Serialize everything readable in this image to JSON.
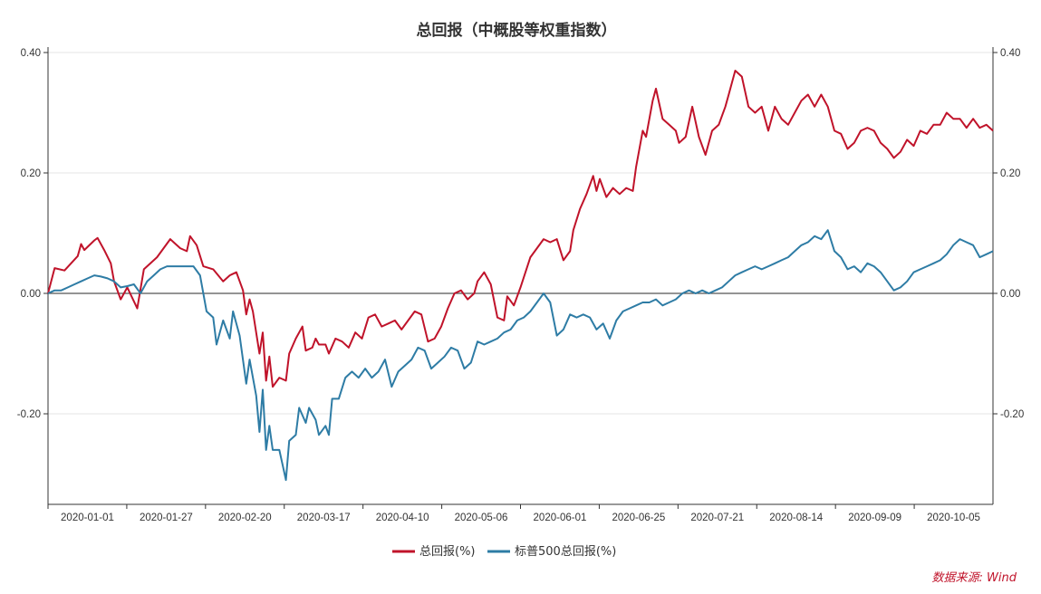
{
  "chart_data": {
    "type": "line",
    "title": "总回报（中概股等权重指数）",
    "source": "数据来源: Wind",
    "x_tick_labels": [
      "2020-01-01",
      "2020-01-27",
      "2020-02-20",
      "2020-03-17",
      "2020-04-10",
      "2020-05-06",
      "2020-06-01",
      "2020-06-25",
      "2020-07-21",
      "2020-08-14",
      "2020-09-09",
      "2020-10-05"
    ],
    "y_tick_labels": [
      "0.40",
      "0.20",
      "0.00",
      "-0.20"
    ],
    "y_ticks": [
      0.4,
      0.2,
      0.0,
      -0.2
    ],
    "ylim": [
      -0.35,
      0.4
    ],
    "grid": true,
    "legend_position": "bottom",
    "n_points": 208,
    "series": [
      {
        "name": "总回报(%)",
        "color": "#c0132a",
        "keypoints": [
          [
            0,
            0.0
          ],
          [
            2,
            0.042
          ],
          [
            5,
            0.038
          ],
          [
            9,
            0.062
          ],
          [
            10,
            0.082
          ],
          [
            11,
            0.072
          ],
          [
            14,
            0.088
          ],
          [
            15,
            0.092
          ],
          [
            17,
            0.072
          ],
          [
            19,
            0.05
          ],
          [
            20,
            0.02
          ],
          [
            22,
            -0.01
          ],
          [
            24,
            0.01
          ],
          [
            27,
            -0.025
          ],
          [
            29,
            0.04
          ],
          [
            33,
            0.06
          ],
          [
            35,
            0.075
          ],
          [
            37,
            0.09
          ],
          [
            40,
            0.075
          ],
          [
            42,
            0.07
          ],
          [
            43,
            0.095
          ],
          [
            45,
            0.08
          ],
          [
            47,
            0.045
          ],
          [
            50,
            0.04
          ],
          [
            53,
            0.02
          ],
          [
            55,
            0.03
          ],
          [
            57,
            0.035
          ],
          [
            59,
            0.005
          ],
          [
            60,
            -0.035
          ],
          [
            61,
            -0.01
          ],
          [
            62,
            -0.03
          ],
          [
            64,
            -0.1
          ],
          [
            65,
            -0.065
          ],
          [
            66,
            -0.145
          ],
          [
            67,
            -0.105
          ],
          [
            68,
            -0.155
          ],
          [
            70,
            -0.14
          ],
          [
            72,
            -0.145
          ],
          [
            73,
            -0.1
          ],
          [
            75,
            -0.075
          ],
          [
            77,
            -0.055
          ],
          [
            78,
            -0.095
          ],
          [
            80,
            -0.09
          ],
          [
            81,
            -0.075
          ],
          [
            82,
            -0.085
          ],
          [
            84,
            -0.085
          ],
          [
            85,
            -0.1
          ],
          [
            87,
            -0.075
          ],
          [
            89,
            -0.08
          ],
          [
            91,
            -0.09
          ],
          [
            93,
            -0.065
          ],
          [
            95,
            -0.075
          ],
          [
            97,
            -0.04
          ],
          [
            99,
            -0.035
          ],
          [
            101,
            -0.055
          ],
          [
            103,
            -0.05
          ],
          [
            105,
            -0.045
          ],
          [
            107,
            -0.06
          ],
          [
            109,
            -0.045
          ],
          [
            111,
            -0.03
          ],
          [
            113,
            -0.035
          ],
          [
            115,
            -0.08
          ],
          [
            117,
            -0.075
          ],
          [
            119,
            -0.055
          ],
          [
            121,
            -0.025
          ],
          [
            123,
            0.0
          ],
          [
            125,
            0.005
          ],
          [
            127,
            -0.01
          ],
          [
            129,
            0.0
          ],
          [
            130,
            0.02
          ],
          [
            132,
            0.035
          ],
          [
            134,
            0.015
          ],
          [
            136,
            -0.04
          ],
          [
            138,
            -0.045
          ],
          [
            139,
            -0.005
          ],
          [
            141,
            -0.02
          ],
          [
            143,
            0.01
          ],
          [
            146,
            0.06
          ],
          [
            148,
            0.075
          ],
          [
            150,
            0.09
          ],
          [
            152,
            0.085
          ],
          [
            154,
            0.09
          ],
          [
            156,
            0.055
          ],
          [
            158,
            0.07
          ],
          [
            159,
            0.105
          ],
          [
            161,
            0.14
          ],
          [
            163,
            0.165
          ],
          [
            165,
            0.195
          ],
          [
            166,
            0.17
          ],
          [
            167,
            0.19
          ],
          [
            169,
            0.16
          ],
          [
            171,
            0.175
          ],
          [
            173,
            0.165
          ],
          [
            175,
            0.175
          ],
          [
            177,
            0.17
          ],
          [
            178,
            0.21
          ],
          [
            180,
            0.27
          ],
          [
            181,
            0.26
          ],
          [
            183,
            0.32
          ],
          [
            184,
            0.34
          ],
          [
            186,
            0.29
          ],
          [
            188,
            0.28
          ],
          [
            190,
            0.27
          ],
          [
            191,
            0.25
          ],
          [
            193,
            0.26
          ],
          [
            195,
            0.31
          ],
          [
            197,
            0.26
          ],
          [
            199,
            0.23
          ],
          [
            201,
            0.27
          ],
          [
            203,
            0.28
          ],
          [
            205,
            0.31
          ],
          [
            206,
            0.33
          ],
          [
            208,
            0.37
          ],
          [
            210,
            0.36
          ],
          [
            212,
            0.31
          ],
          [
            214,
            0.3
          ],
          [
            216,
            0.31
          ],
          [
            218,
            0.27
          ],
          [
            220,
            0.31
          ],
          [
            222,
            0.29
          ],
          [
            224,
            0.28
          ],
          [
            226,
            0.3
          ],
          [
            228,
            0.32
          ],
          [
            230,
            0.33
          ],
          [
            232,
            0.31
          ],
          [
            234,
            0.33
          ],
          [
            236,
            0.31
          ],
          [
            238,
            0.27
          ],
          [
            240,
            0.265
          ],
          [
            242,
            0.24
          ],
          [
            244,
            0.25
          ],
          [
            246,
            0.27
          ],
          [
            248,
            0.275
          ],
          [
            250,
            0.27
          ],
          [
            252,
            0.25
          ],
          [
            254,
            0.24
          ],
          [
            256,
            0.225
          ],
          [
            258,
            0.235
          ],
          [
            260,
            0.255
          ],
          [
            262,
            0.245
          ],
          [
            264,
            0.27
          ],
          [
            266,
            0.265
          ],
          [
            268,
            0.28
          ],
          [
            270,
            0.28
          ],
          [
            272,
            0.3
          ],
          [
            274,
            0.29
          ],
          [
            276,
            0.29
          ],
          [
            278,
            0.275
          ],
          [
            280,
            0.29
          ],
          [
            282,
            0.275
          ],
          [
            284,
            0.28
          ],
          [
            286,
            0.27
          ]
        ]
      },
      {
        "name": "标普500总回报(%)",
        "color": "#2e7ca5",
        "keypoints": [
          [
            0,
            0.0
          ],
          [
            2,
            0.005
          ],
          [
            4,
            0.005
          ],
          [
            6,
            0.01
          ],
          [
            8,
            0.015
          ],
          [
            10,
            0.02
          ],
          [
            12,
            0.025
          ],
          [
            14,
            0.03
          ],
          [
            16,
            0.028
          ],
          [
            18,
            0.025
          ],
          [
            20,
            0.02
          ],
          [
            22,
            0.01
          ],
          [
            24,
            0.012
          ],
          [
            26,
            0.015
          ],
          [
            28,
            0.0
          ],
          [
            30,
            0.02
          ],
          [
            32,
            0.03
          ],
          [
            34,
            0.04
          ],
          [
            36,
            0.045
          ],
          [
            38,
            0.045
          ],
          [
            40,
            0.045
          ],
          [
            42,
            0.045
          ],
          [
            44,
            0.045
          ],
          [
            46,
            0.03
          ],
          [
            48,
            -0.03
          ],
          [
            50,
            -0.04
          ],
          [
            51,
            -0.085
          ],
          [
            53,
            -0.045
          ],
          [
            55,
            -0.075
          ],
          [
            56,
            -0.03
          ],
          [
            58,
            -0.07
          ],
          [
            60,
            -0.15
          ],
          [
            61,
            -0.11
          ],
          [
            63,
            -0.17
          ],
          [
            64,
            -0.23
          ],
          [
            65,
            -0.16
          ],
          [
            66,
            -0.26
          ],
          [
            67,
            -0.22
          ],
          [
            68,
            -0.26
          ],
          [
            70,
            -0.26
          ],
          [
            72,
            -0.31
          ],
          [
            73,
            -0.245
          ],
          [
            75,
            -0.235
          ],
          [
            76,
            -0.19
          ],
          [
            78,
            -0.215
          ],
          [
            79,
            -0.19
          ],
          [
            81,
            -0.21
          ],
          [
            82,
            -0.235
          ],
          [
            84,
            -0.22
          ],
          [
            85,
            -0.235
          ],
          [
            86,
            -0.175
          ],
          [
            88,
            -0.175
          ],
          [
            90,
            -0.14
          ],
          [
            92,
            -0.13
          ],
          [
            94,
            -0.14
          ],
          [
            96,
            -0.125
          ],
          [
            98,
            -0.14
          ],
          [
            100,
            -0.13
          ],
          [
            102,
            -0.11
          ],
          [
            104,
            -0.155
          ],
          [
            106,
            -0.13
          ],
          [
            108,
            -0.12
          ],
          [
            110,
            -0.11
          ],
          [
            112,
            -0.09
          ],
          [
            114,
            -0.095
          ],
          [
            116,
            -0.125
          ],
          [
            118,
            -0.115
          ],
          [
            120,
            -0.105
          ],
          [
            122,
            -0.09
          ],
          [
            124,
            -0.095
          ],
          [
            126,
            -0.125
          ],
          [
            128,
            -0.115
          ],
          [
            130,
            -0.08
          ],
          [
            132,
            -0.085
          ],
          [
            134,
            -0.08
          ],
          [
            136,
            -0.075
          ],
          [
            138,
            -0.065
          ],
          [
            140,
            -0.06
          ],
          [
            142,
            -0.045
          ],
          [
            144,
            -0.04
          ],
          [
            146,
            -0.03
          ],
          [
            148,
            -0.015
          ],
          [
            150,
            0.0
          ],
          [
            152,
            -0.015
          ],
          [
            154,
            -0.07
          ],
          [
            156,
            -0.06
          ],
          [
            158,
            -0.035
          ],
          [
            160,
            -0.04
          ],
          [
            162,
            -0.035
          ],
          [
            164,
            -0.04
          ],
          [
            166,
            -0.06
          ],
          [
            168,
            -0.05
          ],
          [
            170,
            -0.075
          ],
          [
            172,
            -0.045
          ],
          [
            174,
            -0.03
          ],
          [
            176,
            -0.025
          ],
          [
            178,
            -0.02
          ],
          [
            180,
            -0.015
          ],
          [
            182,
            -0.015
          ],
          [
            184,
            -0.01
          ],
          [
            186,
            -0.02
          ],
          [
            188,
            -0.015
          ],
          [
            190,
            -0.01
          ],
          [
            192,
            0.0
          ],
          [
            194,
            0.005
          ],
          [
            196,
            0.0
          ],
          [
            198,
            0.005
          ],
          [
            200,
            0.0
          ],
          [
            202,
            0.005
          ],
          [
            204,
            0.01
          ],
          [
            206,
            0.02
          ],
          [
            208,
            0.03
          ],
          [
            210,
            0.035
          ],
          [
            212,
            0.04
          ],
          [
            214,
            0.045
          ],
          [
            216,
            0.04
          ],
          [
            218,
            0.045
          ],
          [
            220,
            0.05
          ],
          [
            222,
            0.055
          ],
          [
            224,
            0.06
          ],
          [
            226,
            0.07
          ],
          [
            228,
            0.08
          ],
          [
            230,
            0.085
          ],
          [
            232,
            0.095
          ],
          [
            234,
            0.09
          ],
          [
            236,
            0.105
          ],
          [
            238,
            0.07
          ],
          [
            240,
            0.06
          ],
          [
            242,
            0.04
          ],
          [
            244,
            0.045
          ],
          [
            246,
            0.035
          ],
          [
            248,
            0.05
          ],
          [
            250,
            0.045
          ],
          [
            252,
            0.035
          ],
          [
            254,
            0.02
          ],
          [
            256,
            0.005
          ],
          [
            258,
            0.01
          ],
          [
            260,
            0.02
          ],
          [
            262,
            0.035
          ],
          [
            264,
            0.04
          ],
          [
            266,
            0.045
          ],
          [
            268,
            0.05
          ],
          [
            270,
            0.055
          ],
          [
            272,
            0.065
          ],
          [
            274,
            0.08
          ],
          [
            276,
            0.09
          ],
          [
            278,
            0.085
          ],
          [
            280,
            0.08
          ],
          [
            282,
            0.06
          ],
          [
            284,
            0.065
          ],
          [
            286,
            0.07
          ]
        ]
      }
    ]
  }
}
